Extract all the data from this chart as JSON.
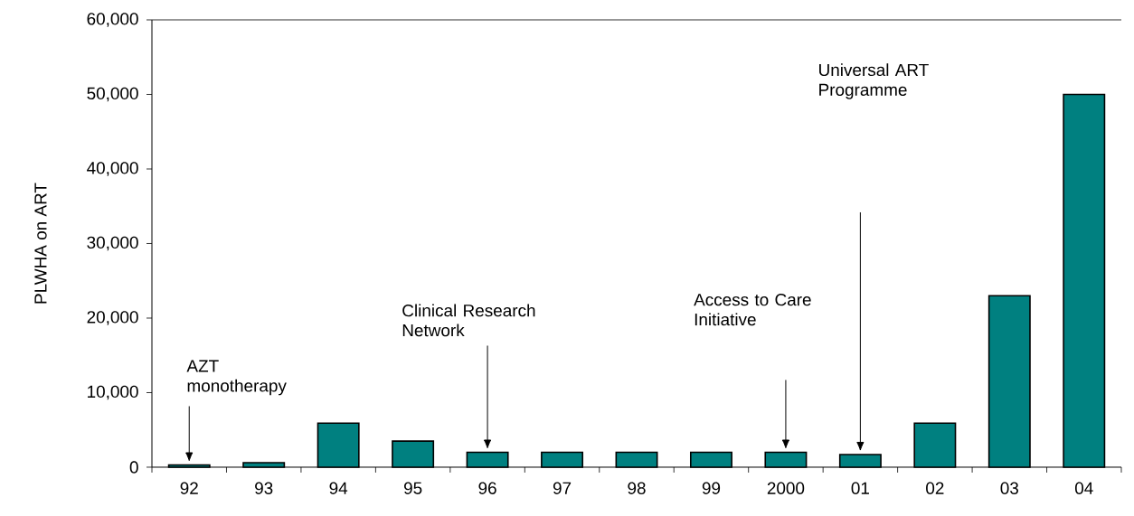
{
  "chart_data": {
    "type": "bar",
    "ylabel": "PLWHA on ART",
    "categories": [
      "92",
      "93",
      "94",
      "95",
      "96",
      "97",
      "98",
      "99",
      "2000",
      "01",
      "02",
      "03",
      "04"
    ],
    "values": [
      300,
      600,
      5900,
      3500,
      2000,
      2000,
      2000,
      2000,
      2000,
      1700,
      5900,
      23000,
      50000
    ],
    "color": "#008080",
    "ylim": [
      0,
      60000
    ],
    "yticks": [
      {
        "value": 0,
        "label": "0"
      },
      {
        "value": 10000,
        "label": "10,000"
      },
      {
        "value": 20000,
        "label": "20,000"
      },
      {
        "value": 30000,
        "label": "30,000"
      },
      {
        "value": 40000,
        "label": "40,000"
      },
      {
        "value": 50000,
        "label": "50,000"
      },
      {
        "value": 60000,
        "label": "60,000"
      }
    ],
    "grid": false,
    "annotations": [
      "AZT monotherapy",
      "Clinical Research Network",
      "Access to Care Initiative",
      "Universal ART Programme"
    ]
  }
}
